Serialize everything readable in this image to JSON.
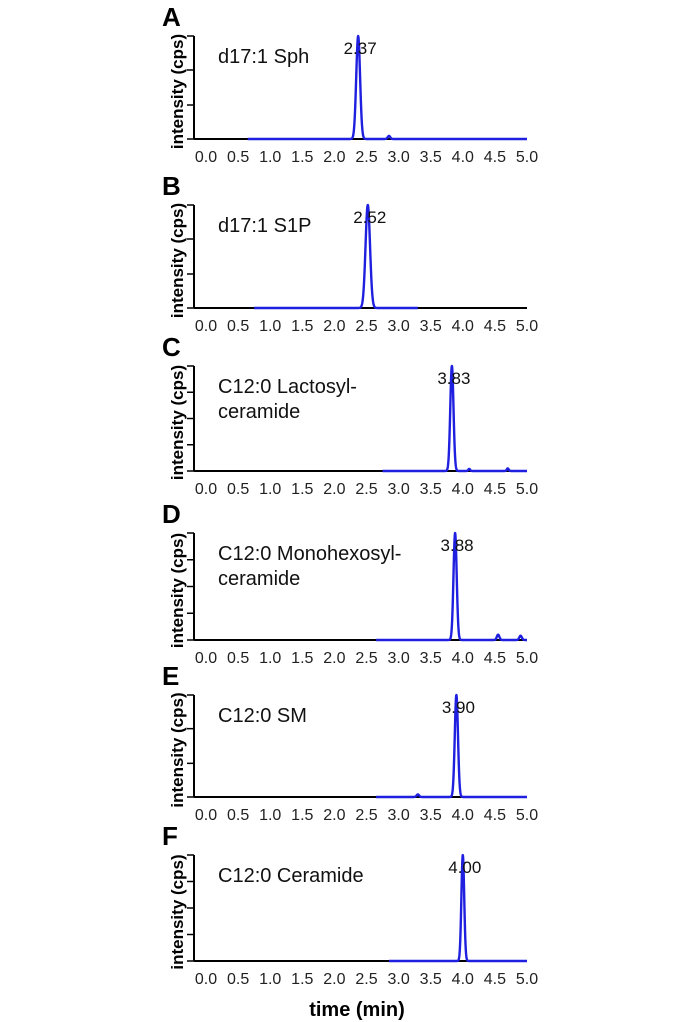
{
  "figure": {
    "xlabel": "time (min)"
  },
  "chart_data": [
    {
      "type": "line",
      "panel": "A",
      "label_lines": [
        "d17:1 Sph"
      ],
      "ylabel": "intensity (cps)",
      "xlabel": "",
      "xlim": [
        0.0,
        5.0
      ],
      "ylim": [
        0,
        100
      ],
      "y_ticks": [
        0,
        33,
        67,
        100
      ],
      "x_ticks": [
        "0.0",
        "0.5",
        "1.0",
        "1.5",
        "2.0",
        "2.5",
        "3.0",
        "3.5",
        "4.0",
        "4.5",
        "5.0"
      ],
      "grid": false,
      "trace_range": [
        0.65,
        5.0
      ],
      "peaks": [
        {
          "rt": 2.37,
          "height": 100,
          "width": 0.03,
          "label": "2.37"
        }
      ],
      "minor_peaks": [
        {
          "rt": 2.85,
          "height": 3,
          "width": 0.02
        }
      ]
    },
    {
      "type": "line",
      "panel": "B",
      "label_lines": [
        "d17:1 S1P"
      ],
      "ylabel": "intensity (cps)",
      "xlabel": "",
      "xlim": [
        0.0,
        5.0
      ],
      "ylim": [
        0,
        100
      ],
      "y_ticks": [
        0,
        33,
        67,
        100
      ],
      "x_ticks": [
        "0.0",
        "0.5",
        "1.0",
        "1.5",
        "2.0",
        "2.5",
        "3.0",
        "3.5",
        "4.0",
        "4.5",
        "5.0"
      ],
      "grid": false,
      "trace_range": [
        0.75,
        3.3
      ],
      "peaks": [
        {
          "rt": 2.52,
          "height": 100,
          "width": 0.035,
          "label": "2.52"
        }
      ],
      "minor_peaks": []
    },
    {
      "type": "line",
      "panel": "C",
      "label_lines": [
        "C12:0 Lactosyl-",
        "ceramide"
      ],
      "ylabel": "intensity (cps)",
      "xlabel": "",
      "xlim": [
        0.0,
        5.0
      ],
      "ylim": [
        0,
        100
      ],
      "y_ticks": [
        0,
        25,
        50,
        75,
        100
      ],
      "x_ticks": [
        "0.0",
        "0.5",
        "1.0",
        "1.5",
        "2.0",
        "2.5",
        "3.0",
        "3.5",
        "4.0",
        "4.5",
        "5.0"
      ],
      "grid": false,
      "trace_range": [
        2.75,
        5.0
      ],
      "peaks": [
        {
          "rt": 3.83,
          "height": 100,
          "width": 0.025,
          "label": "3.83"
        }
      ],
      "minor_peaks": [
        {
          "rt": 4.1,
          "height": 2,
          "width": 0.015
        },
        {
          "rt": 4.7,
          "height": 2.5,
          "width": 0.015
        }
      ]
    },
    {
      "type": "line",
      "panel": "D",
      "label_lines": [
        "C12:0 Monohexosyl-",
        "ceramide"
      ],
      "ylabel": "intensity (cps)",
      "xlabel": "",
      "xlim": [
        0.0,
        5.0
      ],
      "ylim": [
        0,
        100
      ],
      "y_ticks": [
        0,
        25,
        50,
        75,
        100
      ],
      "x_ticks": [
        "0.0",
        "0.5",
        "1.0",
        "1.5",
        "2.0",
        "2.5",
        "3.0",
        "3.5",
        "4.0",
        "4.5",
        "5.0"
      ],
      "grid": false,
      "trace_range": [
        2.65,
        5.0
      ],
      "peaks": [
        {
          "rt": 3.88,
          "height": 100,
          "width": 0.025,
          "label": "3.88"
        }
      ],
      "minor_peaks": [
        {
          "rt": 4.55,
          "height": 5,
          "width": 0.02
        },
        {
          "rt": 4.9,
          "height": 4,
          "width": 0.02
        }
      ]
    },
    {
      "type": "line",
      "panel": "E",
      "label_lines": [
        "C12:0 SM"
      ],
      "ylabel": "intensity (cps)",
      "xlabel": "",
      "xlim": [
        0.0,
        5.0
      ],
      "ylim": [
        0,
        100
      ],
      "y_ticks": [
        0,
        33,
        67,
        100
      ],
      "x_ticks": [
        "0.0",
        "0.5",
        "1.0",
        "1.5",
        "2.0",
        "2.5",
        "3.0",
        "3.5",
        "4.0",
        "4.5",
        "5.0"
      ],
      "grid": false,
      "trace_range": [
        2.65,
        5.0
      ],
      "peaks": [
        {
          "rt": 3.9,
          "height": 100,
          "width": 0.025,
          "label": "3.90"
        }
      ],
      "minor_peaks": [
        {
          "rt": 3.3,
          "height": 2.5,
          "width": 0.02
        }
      ]
    },
    {
      "type": "line",
      "panel": "F",
      "label_lines": [
        "C12:0 Ceramide"
      ],
      "ylabel": "intensity (cps)",
      "xlabel": "",
      "xlim": [
        0.0,
        5.0
      ],
      "ylim": [
        0,
        100
      ],
      "y_ticks": [
        0,
        25,
        50,
        75,
        100
      ],
      "x_ticks": [
        "0.0",
        "0.5",
        "1.0",
        "1.5",
        "2.0",
        "2.5",
        "3.0",
        "3.5",
        "4.0",
        "4.5",
        "5.0"
      ],
      "grid": false,
      "trace_range": [
        2.85,
        5.0
      ],
      "peaks": [
        {
          "rt": 4.0,
          "height": 100,
          "width": 0.022,
          "label": "4.00"
        }
      ],
      "minor_peaks": []
    }
  ]
}
